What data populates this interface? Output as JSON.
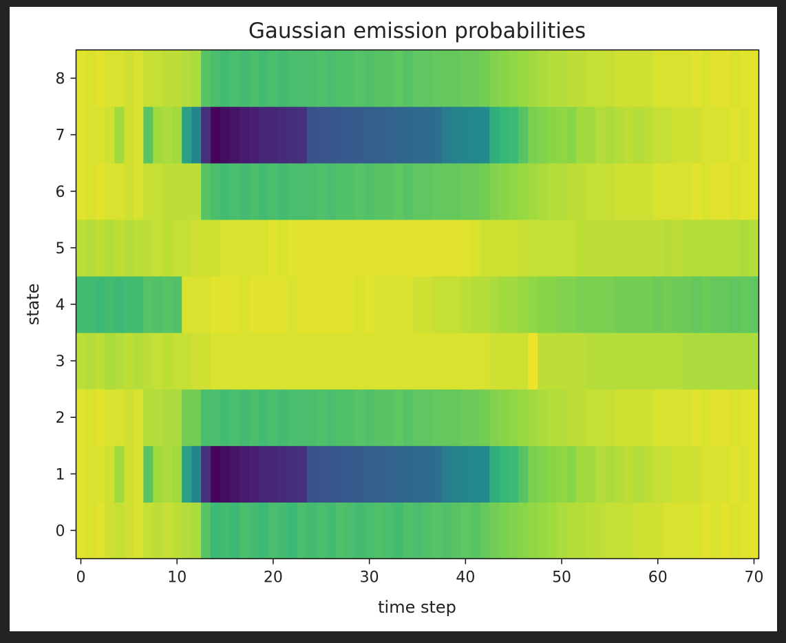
{
  "chart_data": {
    "type": "heatmap",
    "title": "Gaussian emission probabilities",
    "xlabel": "time step",
    "ylabel": "state",
    "x_range": [
      0,
      70
    ],
    "y_range": [
      0,
      8
    ],
    "x_ticks": [
      0,
      10,
      20,
      30,
      40,
      50,
      60,
      70
    ],
    "y_ticks": [
      0,
      1,
      2,
      3,
      4,
      5,
      6,
      7,
      8
    ],
    "colormap": "viridis",
    "value_range": [
      0,
      1
    ],
    "grid": false,
    "rows": [
      {
        "state": 0,
        "values": [
          0.97,
          0.96,
          0.97,
          0.95,
          0.94,
          0.95,
          0.96,
          0.94,
          0.93,
          0.94,
          0.93,
          0.92,
          0.91,
          0.8,
          0.76,
          0.77,
          0.76,
          0.78,
          0.77,
          0.76,
          0.78,
          0.77,
          0.76,
          0.78,
          0.77,
          0.78,
          0.77,
          0.79,
          0.78,
          0.77,
          0.78,
          0.79,
          0.78,
          0.77,
          0.79,
          0.78,
          0.79,
          0.8,
          0.79,
          0.8,
          0.81,
          0.8,
          0.82,
          0.84,
          0.85,
          0.86,
          0.87,
          0.88,
          0.89,
          0.9,
          0.91,
          0.92,
          0.92,
          0.93,
          0.93,
          0.94,
          0.94,
          0.94,
          0.95,
          0.95,
          0.95,
          0.96,
          0.96,
          0.96,
          0.96,
          0.97,
          0.96,
          0.97,
          0.96,
          0.97,
          0.97
        ]
      },
      {
        "state": 1,
        "values": [
          0.97,
          0.96,
          0.96,
          0.95,
          0.9,
          0.95,
          0.96,
          0.8,
          0.9,
          0.91,
          0.9,
          0.68,
          0.57,
          0.18,
          0.02,
          0.05,
          0.07,
          0.1,
          0.12,
          0.14,
          0.15,
          0.16,
          0.17,
          0.18,
          0.32,
          0.33,
          0.34,
          0.35,
          0.36,
          0.37,
          0.38,
          0.39,
          0.4,
          0.41,
          0.42,
          0.43,
          0.44,
          0.45,
          0.52,
          0.55,
          0.57,
          0.58,
          0.6,
          0.72,
          0.75,
          0.76,
          0.8,
          0.85,
          0.86,
          0.87,
          0.88,
          0.87,
          0.9,
          0.9,
          0.92,
          0.91,
          0.92,
          0.93,
          0.92,
          0.93,
          0.94,
          0.94,
          0.95,
          0.95,
          0.95,
          0.96,
          0.96,
          0.96,
          0.97,
          0.96,
          0.97
        ]
      },
      {
        "state": 2,
        "values": [
          0.97,
          0.96,
          0.97,
          0.96,
          0.96,
          0.95,
          0.96,
          0.92,
          0.92,
          0.91,
          0.91,
          0.84,
          0.84,
          0.78,
          0.78,
          0.77,
          0.78,
          0.77,
          0.78,
          0.77,
          0.78,
          0.77,
          0.78,
          0.78,
          0.78,
          0.79,
          0.78,
          0.79,
          0.79,
          0.8,
          0.79,
          0.8,
          0.8,
          0.81,
          0.8,
          0.81,
          0.81,
          0.82,
          0.82,
          0.82,
          0.83,
          0.83,
          0.84,
          0.86,
          0.87,
          0.88,
          0.89,
          0.9,
          0.91,
          0.92,
          0.92,
          0.93,
          0.93,
          0.94,
          0.94,
          0.94,
          0.95,
          0.95,
          0.95,
          0.95,
          0.96,
          0.96,
          0.96,
          0.96,
          0.97,
          0.96,
          0.97,
          0.97,
          0.96,
          0.97,
          0.97
        ]
      },
      {
        "state": 3,
        "values": [
          0.93,
          0.92,
          0.93,
          0.91,
          0.92,
          0.93,
          0.92,
          0.93,
          0.94,
          0.93,
          0.94,
          0.94,
          0.95,
          0.95,
          0.96,
          0.96,
          0.96,
          0.96,
          0.96,
          0.96,
          0.96,
          0.96,
          0.96,
          0.96,
          0.96,
          0.96,
          0.96,
          0.96,
          0.96,
          0.96,
          0.96,
          0.96,
          0.96,
          0.96,
          0.96,
          0.96,
          0.96,
          0.96,
          0.96,
          0.96,
          0.96,
          0.96,
          0.96,
          0.95,
          0.95,
          0.95,
          0.95,
          0.98,
          0.93,
          0.93,
          0.93,
          0.93,
          0.93,
          0.92,
          0.92,
          0.92,
          0.92,
          0.92,
          0.92,
          0.92,
          0.92,
          0.92,
          0.92,
          0.91,
          0.91,
          0.91,
          0.91,
          0.91,
          0.91,
          0.91,
          0.91
        ]
      },
      {
        "state": 4,
        "values": [
          0.77,
          0.77,
          0.76,
          0.77,
          0.76,
          0.77,
          0.77,
          0.8,
          0.79,
          0.8,
          0.79,
          0.96,
          0.96,
          0.96,
          0.97,
          0.97,
          0.97,
          0.96,
          0.97,
          0.97,
          0.97,
          0.97,
          0.96,
          0.97,
          0.97,
          0.97,
          0.97,
          0.97,
          0.97,
          0.96,
          0.97,
          0.96,
          0.96,
          0.96,
          0.96,
          0.95,
          0.95,
          0.94,
          0.94,
          0.94,
          0.93,
          0.92,
          0.92,
          0.91,
          0.9,
          0.9,
          0.89,
          0.88,
          0.87,
          0.87,
          0.86,
          0.86,
          0.85,
          0.85,
          0.85,
          0.85,
          0.84,
          0.84,
          0.84,
          0.84,
          0.83,
          0.84,
          0.83,
          0.83,
          0.82,
          0.83,
          0.82,
          0.82,
          0.81,
          0.82,
          0.81
        ]
      },
      {
        "state": 5,
        "values": [
          0.93,
          0.92,
          0.93,
          0.92,
          0.93,
          0.92,
          0.93,
          0.93,
          0.94,
          0.93,
          0.94,
          0.94,
          0.95,
          0.95,
          0.95,
          0.96,
          0.96,
          0.96,
          0.96,
          0.96,
          0.97,
          0.96,
          0.97,
          0.97,
          0.97,
          0.97,
          0.97,
          0.97,
          0.97,
          0.97,
          0.97,
          0.97,
          0.97,
          0.97,
          0.97,
          0.97,
          0.97,
          0.97,
          0.97,
          0.97,
          0.97,
          0.96,
          0.95,
          0.95,
          0.95,
          0.95,
          0.94,
          0.94,
          0.94,
          0.94,
          0.94,
          0.94,
          0.93,
          0.93,
          0.93,
          0.93,
          0.93,
          0.93,
          0.93,
          0.93,
          0.93,
          0.92,
          0.93,
          0.92,
          0.92,
          0.92,
          0.92,
          0.92,
          0.92,
          0.91,
          0.92
        ]
      },
      {
        "state": 6,
        "values": [
          0.97,
          0.96,
          0.97,
          0.96,
          0.96,
          0.95,
          0.96,
          0.94,
          0.94,
          0.93,
          0.93,
          0.93,
          0.93,
          0.8,
          0.78,
          0.77,
          0.78,
          0.77,
          0.78,
          0.77,
          0.78,
          0.77,
          0.78,
          0.78,
          0.78,
          0.79,
          0.78,
          0.79,
          0.79,
          0.8,
          0.79,
          0.8,
          0.8,
          0.81,
          0.8,
          0.81,
          0.81,
          0.82,
          0.82,
          0.82,
          0.83,
          0.83,
          0.84,
          0.86,
          0.87,
          0.88,
          0.89,
          0.9,
          0.91,
          0.92,
          0.92,
          0.93,
          0.93,
          0.94,
          0.94,
          0.94,
          0.95,
          0.95,
          0.95,
          0.95,
          0.96,
          0.96,
          0.96,
          0.96,
          0.97,
          0.96,
          0.97,
          0.97,
          0.96,
          0.97,
          0.97
        ]
      },
      {
        "state": 7,
        "values": [
          0.97,
          0.96,
          0.96,
          0.95,
          0.9,
          0.95,
          0.96,
          0.8,
          0.9,
          0.91,
          0.9,
          0.68,
          0.57,
          0.18,
          0.02,
          0.05,
          0.07,
          0.1,
          0.12,
          0.14,
          0.15,
          0.16,
          0.17,
          0.18,
          0.32,
          0.33,
          0.34,
          0.35,
          0.36,
          0.37,
          0.38,
          0.39,
          0.4,
          0.41,
          0.42,
          0.43,
          0.44,
          0.45,
          0.52,
          0.55,
          0.57,
          0.58,
          0.6,
          0.72,
          0.75,
          0.76,
          0.8,
          0.85,
          0.86,
          0.87,
          0.88,
          0.87,
          0.9,
          0.9,
          0.92,
          0.91,
          0.92,
          0.93,
          0.92,
          0.93,
          0.94,
          0.94,
          0.95,
          0.95,
          0.95,
          0.96,
          0.96,
          0.96,
          0.97,
          0.96,
          0.97
        ]
      },
      {
        "state": 8,
        "values": [
          0.97,
          0.96,
          0.97,
          0.96,
          0.96,
          0.95,
          0.96,
          0.94,
          0.94,
          0.93,
          0.93,
          0.92,
          0.91,
          0.8,
          0.78,
          0.77,
          0.78,
          0.77,
          0.78,
          0.77,
          0.78,
          0.77,
          0.78,
          0.78,
          0.78,
          0.79,
          0.78,
          0.79,
          0.79,
          0.8,
          0.79,
          0.8,
          0.8,
          0.81,
          0.8,
          0.81,
          0.81,
          0.82,
          0.82,
          0.82,
          0.83,
          0.83,
          0.84,
          0.86,
          0.87,
          0.88,
          0.89,
          0.9,
          0.91,
          0.92,
          0.92,
          0.93,
          0.93,
          0.94,
          0.94,
          0.94,
          0.95,
          0.95,
          0.95,
          0.95,
          0.96,
          0.96,
          0.96,
          0.96,
          0.97,
          0.96,
          0.97,
          0.97,
          0.96,
          0.97,
          0.97
        ]
      }
    ]
  }
}
